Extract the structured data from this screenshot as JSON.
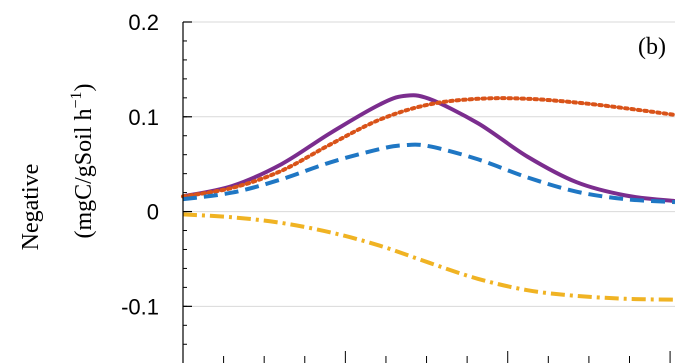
{
  "chart_data": {
    "type": "line",
    "panel_label": "(b)",
    "ylabel_line1": "Negative",
    "ylabel_line2": "(mgC/gSoil h",
    "ylabel_sup": "−1",
    "ylabel_close": ")",
    "ylim": [
      -0.145,
      0.2
    ],
    "xlim": [
      0,
      1
    ],
    "yticks": [
      {
        "value": 0.2,
        "label": "0.2"
      },
      {
        "value": 0.1,
        "label": "0.1"
      },
      {
        "value": 0,
        "label": "0"
      },
      {
        "value": -0.1,
        "label": "-0.1"
      }
    ],
    "grid": true,
    "series": [
      {
        "color": "#7b2d8e",
        "dash": "solid",
        "x": [
          0,
          0.1,
          0.2,
          0.3,
          0.4,
          0.45,
          0.5,
          0.6,
          0.7,
          0.8,
          0.9,
          1.0
        ],
        "y": [
          0.016,
          0.027,
          0.05,
          0.083,
          0.113,
          0.122,
          0.119,
          0.093,
          0.058,
          0.031,
          0.017,
          0.011
        ]
      },
      {
        "color": "#d95319",
        "dash": "dotted",
        "x": [
          0,
          0.1,
          0.2,
          0.3,
          0.4,
          0.5,
          0.6,
          0.7,
          0.8,
          0.9,
          1.0
        ],
        "y": [
          0.016,
          0.025,
          0.043,
          0.071,
          0.097,
          0.113,
          0.119,
          0.119,
          0.115,
          0.109,
          0.102
        ]
      },
      {
        "color": "#1f77c4",
        "dash": "dashed",
        "x": [
          0,
          0.1,
          0.2,
          0.3,
          0.4,
          0.45,
          0.5,
          0.6,
          0.7,
          0.8,
          0.9,
          1.0
        ],
        "y": [
          0.013,
          0.02,
          0.034,
          0.052,
          0.066,
          0.07,
          0.069,
          0.055,
          0.036,
          0.021,
          0.013,
          0.01
        ]
      },
      {
        "color": "#f0b323",
        "dash": "dashdot",
        "x": [
          0,
          0.1,
          0.2,
          0.3,
          0.4,
          0.5,
          0.6,
          0.7,
          0.8,
          0.9,
          1.0
        ],
        "y": [
          -0.003,
          -0.006,
          -0.012,
          -0.022,
          -0.036,
          -0.054,
          -0.071,
          -0.083,
          -0.089,
          -0.092,
          -0.093
        ]
      }
    ]
  }
}
